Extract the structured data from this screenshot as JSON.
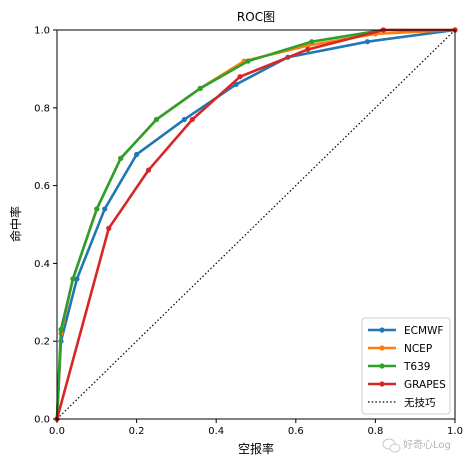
{
  "chart_data": {
    "type": "line",
    "title": "ROC图",
    "xlabel": "空报率",
    "ylabel": "命中率",
    "xlim": [
      0.0,
      1.0
    ],
    "ylim": [
      0.0,
      1.0
    ],
    "x_ticks": [
      "0.0",
      "0.2",
      "0.4",
      "0.6",
      "0.8",
      "1.0"
    ],
    "y_ticks": [
      "0.0",
      "0.2",
      "0.4",
      "0.6",
      "0.8",
      "1.0"
    ],
    "grid": false,
    "legend_position": "lower-right",
    "series": [
      {
        "name": "ECMWF",
        "color": "#1f77b4",
        "x": [
          0.0,
          0.01,
          0.05,
          0.12,
          0.2,
          0.32,
          0.45,
          0.58,
          0.78,
          1.0
        ],
        "y": [
          0.0,
          0.2,
          0.36,
          0.54,
          0.68,
          0.77,
          0.86,
          0.93,
          0.97,
          1.0
        ]
      },
      {
        "name": "NCEP",
        "color": "#ff7f0e",
        "x": [
          0.0,
          0.01,
          0.04,
          0.1,
          0.16,
          0.25,
          0.36,
          0.47,
          0.63,
          0.8,
          1.0
        ],
        "y": [
          0.0,
          0.22,
          0.36,
          0.54,
          0.67,
          0.77,
          0.85,
          0.92,
          0.96,
          0.99,
          1.0
        ]
      },
      {
        "name": "T639",
        "color": "#2ca02c",
        "x": [
          0.0,
          0.01,
          0.04,
          0.1,
          0.16,
          0.25,
          0.36,
          0.48,
          0.64,
          0.82,
          1.0
        ],
        "y": [
          0.0,
          0.23,
          0.36,
          0.54,
          0.67,
          0.77,
          0.85,
          0.92,
          0.97,
          1.0,
          1.0
        ]
      },
      {
        "name": "GRAPES",
        "color": "#d62728",
        "x": [
          0.0,
          0.13,
          0.23,
          0.34,
          0.46,
          0.63,
          0.82,
          1.0
        ],
        "y": [
          0.0,
          0.49,
          0.64,
          0.77,
          0.88,
          0.95,
          1.0,
          1.0
        ]
      }
    ],
    "reference_line": {
      "name": "无技巧",
      "x": [
        0.0,
        1.0
      ],
      "y": [
        0.0,
        1.0
      ],
      "style": "dotted",
      "color": "#000000"
    }
  },
  "watermark": "好奇心Log"
}
